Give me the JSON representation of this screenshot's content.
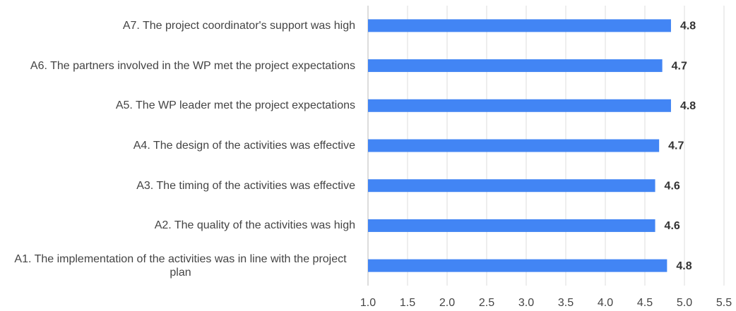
{
  "chart_data": {
    "type": "bar",
    "orientation": "horizontal",
    "categories": [
      "A7. The project coordinator's support was high",
      "A6. The partners involved in the WP met the project expectations",
      "A5. The WP leader met the project expectations",
      "A4. The design of the activities was effective",
      "A3. The timing of the activities was effective",
      "A2. The quality of the activities was high",
      "A1. The implementation of the activities was in line with the project plan"
    ],
    "values": [
      4.83,
      4.72,
      4.83,
      4.68,
      4.63,
      4.63,
      4.78
    ],
    "value_labels": [
      "4.8",
      "4.7",
      "4.8",
      "4.7",
      "4.6",
      "4.6",
      "4.8"
    ],
    "color": "#4285f4",
    "xlim": [
      1,
      5.5
    ],
    "xticks": [
      {
        "value": 1,
        "label": "1.0"
      },
      {
        "value": 1.5,
        "label": "1.5"
      },
      {
        "value": 2,
        "label": "2.0"
      },
      {
        "value": 2.5,
        "label": "2.5"
      },
      {
        "value": 3,
        "label": "3.0"
      },
      {
        "value": 3.5,
        "label": "3.5"
      },
      {
        "value": 4,
        "label": "4.0"
      },
      {
        "value": 4.5,
        "label": "4.5"
      },
      {
        "value": 5,
        "label": "5.0"
      },
      {
        "value": 5.5,
        "label": "5.5"
      }
    ],
    "grid": true
  }
}
